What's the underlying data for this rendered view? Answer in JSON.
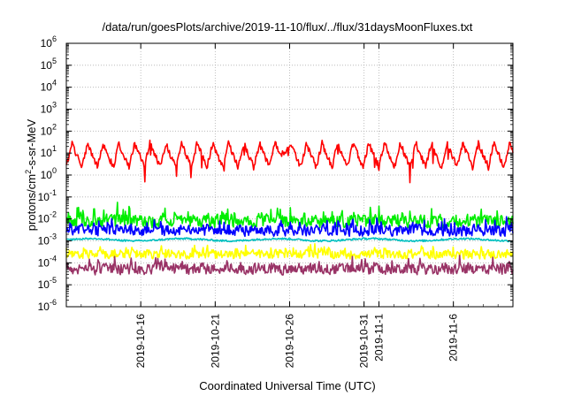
{
  "chart_data": {
    "type": "line",
    "title": "/data/run/goesPlots/archive/2019-11-10/flux/../flux/31daysMoonFluxes.txt",
    "xlabel": "Coordinated Universal Time (UTC)",
    "ylabel": {
      "base": "protons/cm",
      "sup": "2",
      "rest": "-s-sr-MeV"
    },
    "x_range": [
      "2019-10-11",
      "2019-11-10"
    ],
    "y_scale": "log",
    "ylim": [
      1e-06,
      1000000.0
    ],
    "grid": true,
    "legend": "none",
    "y_ticks": [
      {
        "exp": "-6"
      },
      {
        "exp": "-5"
      },
      {
        "exp": "-4"
      },
      {
        "exp": "-3"
      },
      {
        "exp": "-2"
      },
      {
        "exp": "-1"
      },
      {
        "exp": "0"
      },
      {
        "exp": "1"
      },
      {
        "exp": "2"
      },
      {
        "exp": "3"
      },
      {
        "exp": "4"
      },
      {
        "exp": "5"
      },
      {
        "exp": "6"
      }
    ],
    "y_tick_base": "10",
    "x_ticks": [
      {
        "date": "2019-10-16",
        "label": "2019-10-16"
      },
      {
        "date": "2019-10-21",
        "label": "2019-10-21"
      },
      {
        "date": "2019-10-26",
        "label": "2019-10-26"
      },
      {
        "date": "2019-10-31",
        "label": "2019-10-31"
      },
      {
        "date": "2019-11-01",
        "label": "2019-11-1"
      },
      {
        "date": "2019-11-06",
        "label": "2019-11-6"
      }
    ],
    "series": [
      {
        "color": "#ff0000",
        "style": "diurnal",
        "center_log": 0.9,
        "amp_log": 0.55,
        "noise_log": 0.15,
        "period_days": 1.05
      },
      {
        "color": "#00ee00",
        "style": "noisy",
        "center_log": -2.0,
        "amp_log": 0.35,
        "noise_log": 0.35
      },
      {
        "color": "#0000ff",
        "style": "noisy",
        "center_log": -2.45,
        "amp_log": 0.25,
        "noise_log": 0.3
      },
      {
        "color": "#00c0c0",
        "style": "flat",
        "center_log": -2.95,
        "amp_log": 0.05,
        "noise_log": 0.04
      },
      {
        "color": "#ffff00",
        "style": "noisy",
        "center_log": -3.55,
        "amp_log": 0.2,
        "noise_log": 0.25
      },
      {
        "color": "#993366",
        "style": "noisy",
        "center_log": -4.2,
        "amp_log": 0.25,
        "noise_log": 0.3
      }
    ]
  }
}
